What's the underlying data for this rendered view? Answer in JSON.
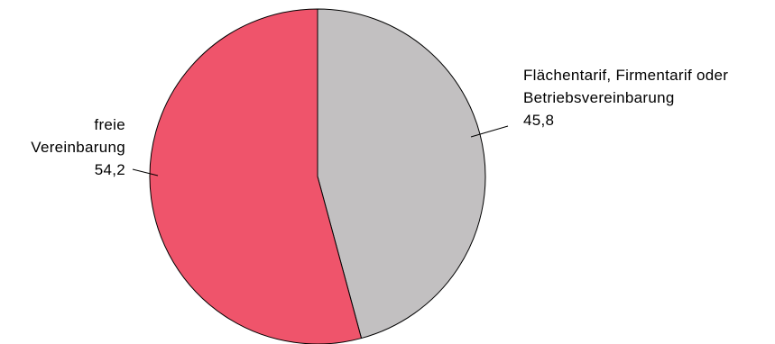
{
  "chart_data": {
    "type": "pie",
    "slices": [
      {
        "label_lines": [
          "Flächentarif, Firmentarif oder",
          "Betriebsvereinbarung"
        ],
        "value": 45.8,
        "value_text": "45,8",
        "color": "#c2c0c1"
      },
      {
        "label_lines": [
          "freie",
          "Vereinbarung"
        ],
        "value": 54.2,
        "value_text": "54,2",
        "color": "#ef546b"
      }
    ],
    "start": "12 o'clock",
    "direction": "clockwise"
  }
}
